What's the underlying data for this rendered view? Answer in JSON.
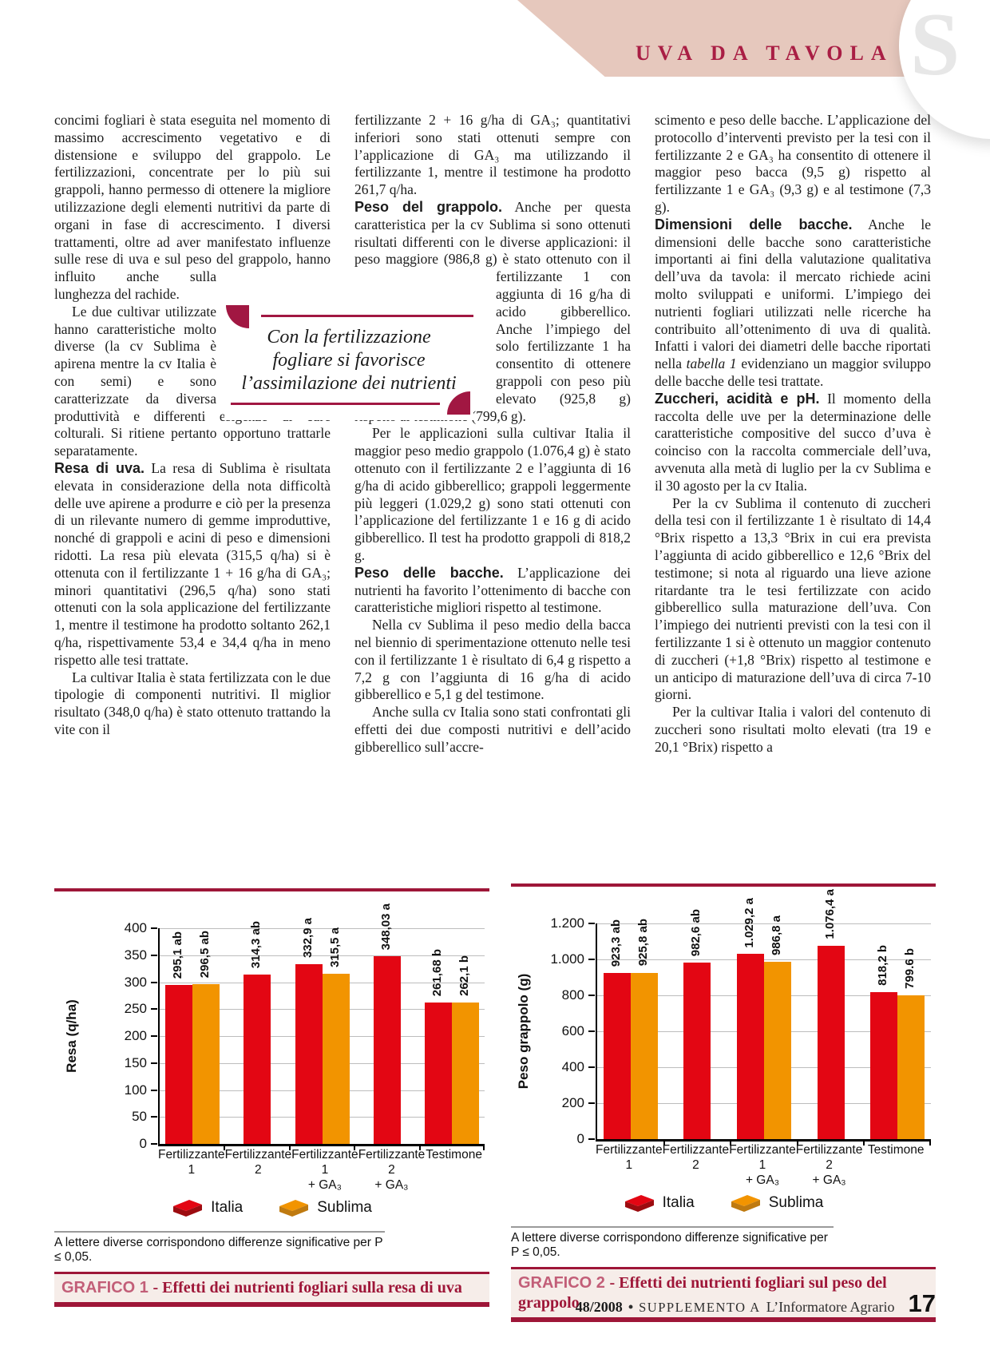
{
  "header": {
    "section_label": "UVA DA TAVOLA",
    "watermark_letter": "S",
    "banner_color": "#e6c8bd",
    "title_color": "#a91e44"
  },
  "article": {
    "col1": {
      "p1a": "concimi fogliari è stata eseguita nel momento di massimo accrescimento vegetativo e di distensione e sviluppo del grappolo. Le fertilizzazioni, concentrate per lo più sui grappoli, hanno permesso di ottenere la migliore utilizzazione degli elementi nutritivi da parte di organi in fase di accrescimento. I diversi trattamenti, oltre ad aver manifestato influenze sulle rese di uva e sul peso del",
      "p1b": "grappolo, hanno influito anche sulla lunghezza del rachide.",
      "p2": "Le due cultivar utilizzate hanno caratteristiche molto diverse (la cv Sublima è apirena mentre la cv Italia è con semi) e sono caratterizzate da diversa produttività e differenti esigenze di cure colturali. Si ritiene pertanto opportuno trattarle separatamente.",
      "s3_lead": "Resa di uva.",
      "s3_text": "La resa di Sublima è risultata elevata in considerazione della nota difficoltà delle uve apirene a produrre e ciò per la presenza di un rilevante numero di gemme improduttive, nonché di grappoli e acini di peso e dimensioni ridotti. La resa più elevata (315,5 q/ha) si è ottenuta con il fertilizzante 1 + 16 g/ha di GA₃; minori quantitativi (296,5 q/ha) sono stati ottenuti con la sola applicazione del fertilizzante 1, mentre il testimone ha prodotto soltanto 262,1 q/ha, rispettivamente 53,4 e 34,4 q/ha in meno rispetto alle tesi trattate.",
      "p4": "La cultivar Italia è stata fertilizzata con le due tipologie di componenti nutritivi. Il miglior risultato (348,0 q/ha) è stato ottenuto trattando la vite con il"
    },
    "col2": {
      "p1": "fertilizzante 2 + 16 g/ha di GA₃; quantitativi inferiori sono stati ottenuti sempre con l’applicazione di GA₃ ma utilizzando il fertilizzante 1, mentre il testimone ha prodotto 261,7 q/ha.",
      "s2_lead": "Peso del grappolo.",
      "s2_text_a": "Anche per questa caratteristica per la cv Sublima si sono ottenuti risultati differenti con le diverse applicazioni: il peso maggiore (986,8 g) è stato ottenuto con il",
      "s2_text_b": "fertilizzante 1 con aggiunta di 16 g/ha di acido gibberellico. Anche l’impiego del solo fertilizzante 1 ha consentito di ottenere grappoli con peso più elevato (925,8 g) rispetto al testimone (799,6 g).",
      "p3": "Per le applicazioni sulla cultivar Italia il maggior peso medio grappolo (1.076,4 g) è stato ottenuto con il fertilizzante 2 e l’aggiunta di 16 g/ha di acido gibberellico; grappoli leggermente più leggeri (1.029,2 g) sono stati ottenuti con l’applicazione del fertilizzante 1 e 16 g di acido gibberellico. Il test ha prodotto grappoli di 818,2 g.",
      "s4_lead": "Peso delle bacche.",
      "s4_text": "L’applicazione dei nutrienti ha favorito l’ottenimento di bacche con caratteristiche migliori rispetto al testimone.",
      "p5": "Nella cv Sublima il peso medio della bacca nel biennio di sperimentazione ottenuto nelle tesi con il fertilizzante 1 è risultato di 6,4 g rispetto a 7,2 g con l’aggiunta di 16 g/ha di acido gibberellico e 5,1 g del testimone.",
      "p6": "Anche sulla cv Italia sono stati confrontati gli effetti dei due composti nutritivi e dell’acido gibberellico sull’accre-"
    },
    "col3": {
      "p1": "scimento e peso delle bacche. L’applicazione del protocollo d’interventi previsto per la tesi con il fertilizzante 2 e GA₃ ha consentito di ottenere il maggior peso bacca (9,5 g) rispetto al fertilizzante 1 e GA₃ (9,3 g) e al testimone (7,3 g).",
      "s2_lead": "Dimensioni delle bacche.",
      "s2_text_a": "Anche le dimensioni delle bacche sono caratteristiche importanti ai fini della valutazione qualitativa dell’uva da tavola: il mercato richiede acini molto sviluppati e uniformi. L’impiego dei nutrienti fogliari utilizzati nelle ricerche ha contribuito all’ottenimento di uva di qualità. Infatti i valori dei diametri delle bacche riportati nella ",
      "s2_italic": "tabella 1",
      "s2_text_b": " evidenziano un maggior sviluppo delle bacche delle tesi trattate.",
      "s3_lead": "Zuccheri, acidità e pH.",
      "s3_text": "Il momento della raccolta delle uve per la determinazione delle caratteristiche compositive del succo d’uva è coinciso con la raccolta commerciale dell’uva, avvenuta alla metà di luglio per la cv Sublima e il 30 agosto per la cv Italia.",
      "p4": "Per la cv Sublima il contenuto di zuccheri della tesi con il fertilizzante 1 è risultato di 14,4 °Brix rispetto a 13,3 °Brix in cui era prevista l’aggiunta di acido gibberellico e 12,6 °Brix del testimone; si nota al riguardo una lieve azione ritardante tra le tesi fertilizzate con acido gibberellico sulla maturazione dell’uva. Con l’impiego dei nutrienti previsti con la tesi con il fertilizzante 1 si è ottenuto un maggior contenuto di zuccheri (+1,8 °Brix) rispetto al testimone e un anticipo di maturazione dell’uva di circa 7-10 giorni.",
      "p5": "Per la cultivar Italia i valori del contenuto di zuccheri sono risultati molto elevati (tra 19 e 20,1 °Brix) rispetto a"
    },
    "pullquote": {
      "text": "Con la fertilizzazione\nfogliare si favorisce\nl’assimilazione dei nutrienti"
    }
  },
  "chart_data": [
    {
      "type": "bar",
      "caption_label": "GRAFICO 1",
      "caption_text": "Effetti dei nutrienti fogliari sulla resa di uva",
      "ylabel": "Resa (q/ha)",
      "ylim": [
        0,
        400
      ],
      "ytick_step": 50,
      "ytick_labels": [
        "400",
        "350",
        "300",
        "250",
        "200",
        "150",
        "100",
        "50",
        "0"
      ],
      "grid": true,
      "legend_position": "bottom",
      "categories": [
        "Fertilizzante 1",
        "Fertilizzante 2",
        "Fertilizzante 1\n+ GA₃",
        "Fertilizzante 2\n+ GA₃",
        "Testimone"
      ],
      "series": [
        {
          "name": "Italia",
          "color": "#e30613",
          "color_dark": "#9c0c10",
          "values": [
            295.1,
            314.3,
            332.9,
            348.03,
            261.68
          ],
          "labels": [
            "295,1 ab",
            "314,3 ab",
            "332,9 a",
            "348,03 a",
            "261,68 b"
          ]
        },
        {
          "name": "Sublima",
          "color": "#f29400",
          "color_dark": "#bf7a10",
          "values": [
            296.5,
            null,
            315.5,
            null,
            262.1
          ],
          "labels": [
            "296,5 ab",
            null,
            "315,5 a",
            null,
            "262,1 b"
          ]
        }
      ],
      "note": "A lettere diverse corrispondono differenze significative per P ≤ 0,05."
    },
    {
      "type": "bar",
      "caption_label": "GRAFICO 2",
      "caption_text": "Effetti dei nutrienti fogliari sul peso del grappolo",
      "ylabel": "Peso grappolo (g)",
      "ylim": [
        0,
        1200
      ],
      "ytick_step": 200,
      "ytick_labels": [
        "1.200",
        "1.000",
        "800",
        "600",
        "400",
        "200",
        "0"
      ],
      "grid": true,
      "legend_position": "bottom",
      "categories": [
        "Fertilizzante 1",
        "Fertilizzante 2",
        "Fertilizzante 1\n+ GA₃",
        "Fertilizzante 2\n+ GA₃",
        "Testimone"
      ],
      "series": [
        {
          "name": "Italia",
          "color": "#e30613",
          "color_dark": "#9c0c10",
          "values": [
            923.3,
            982.6,
            1029.2,
            1076.4,
            818.2
          ],
          "labels": [
            "923,3 ab",
            "982,6 ab",
            "1.029,2 a",
            "1.076,4 a",
            "818,2 b"
          ]
        },
        {
          "name": "Sublima",
          "color": "#f29400",
          "color_dark": "#bf7a10",
          "values": [
            925.8,
            null,
            986.8,
            null,
            799.6
          ],
          "labels": [
            "925,8 ab",
            null,
            "986,8 a",
            null,
            "799.6 b"
          ]
        }
      ],
      "note": "A lettere diverse corrispondono differenze significative per P ≤ 0,05."
    }
  ],
  "footer": {
    "issue": "48/2008",
    "bullet": "•",
    "supplement": "SUPPLEMENTO A",
    "magazine": "L’Informatore Agrario",
    "page_number": "17"
  },
  "colors": {
    "accent_maroon": "#9e1638",
    "banner_pink": "#e6c8bd",
    "title_red": "#a91e44",
    "bar_italia": "#e30613",
    "bar_sublima": "#f29400"
  }
}
